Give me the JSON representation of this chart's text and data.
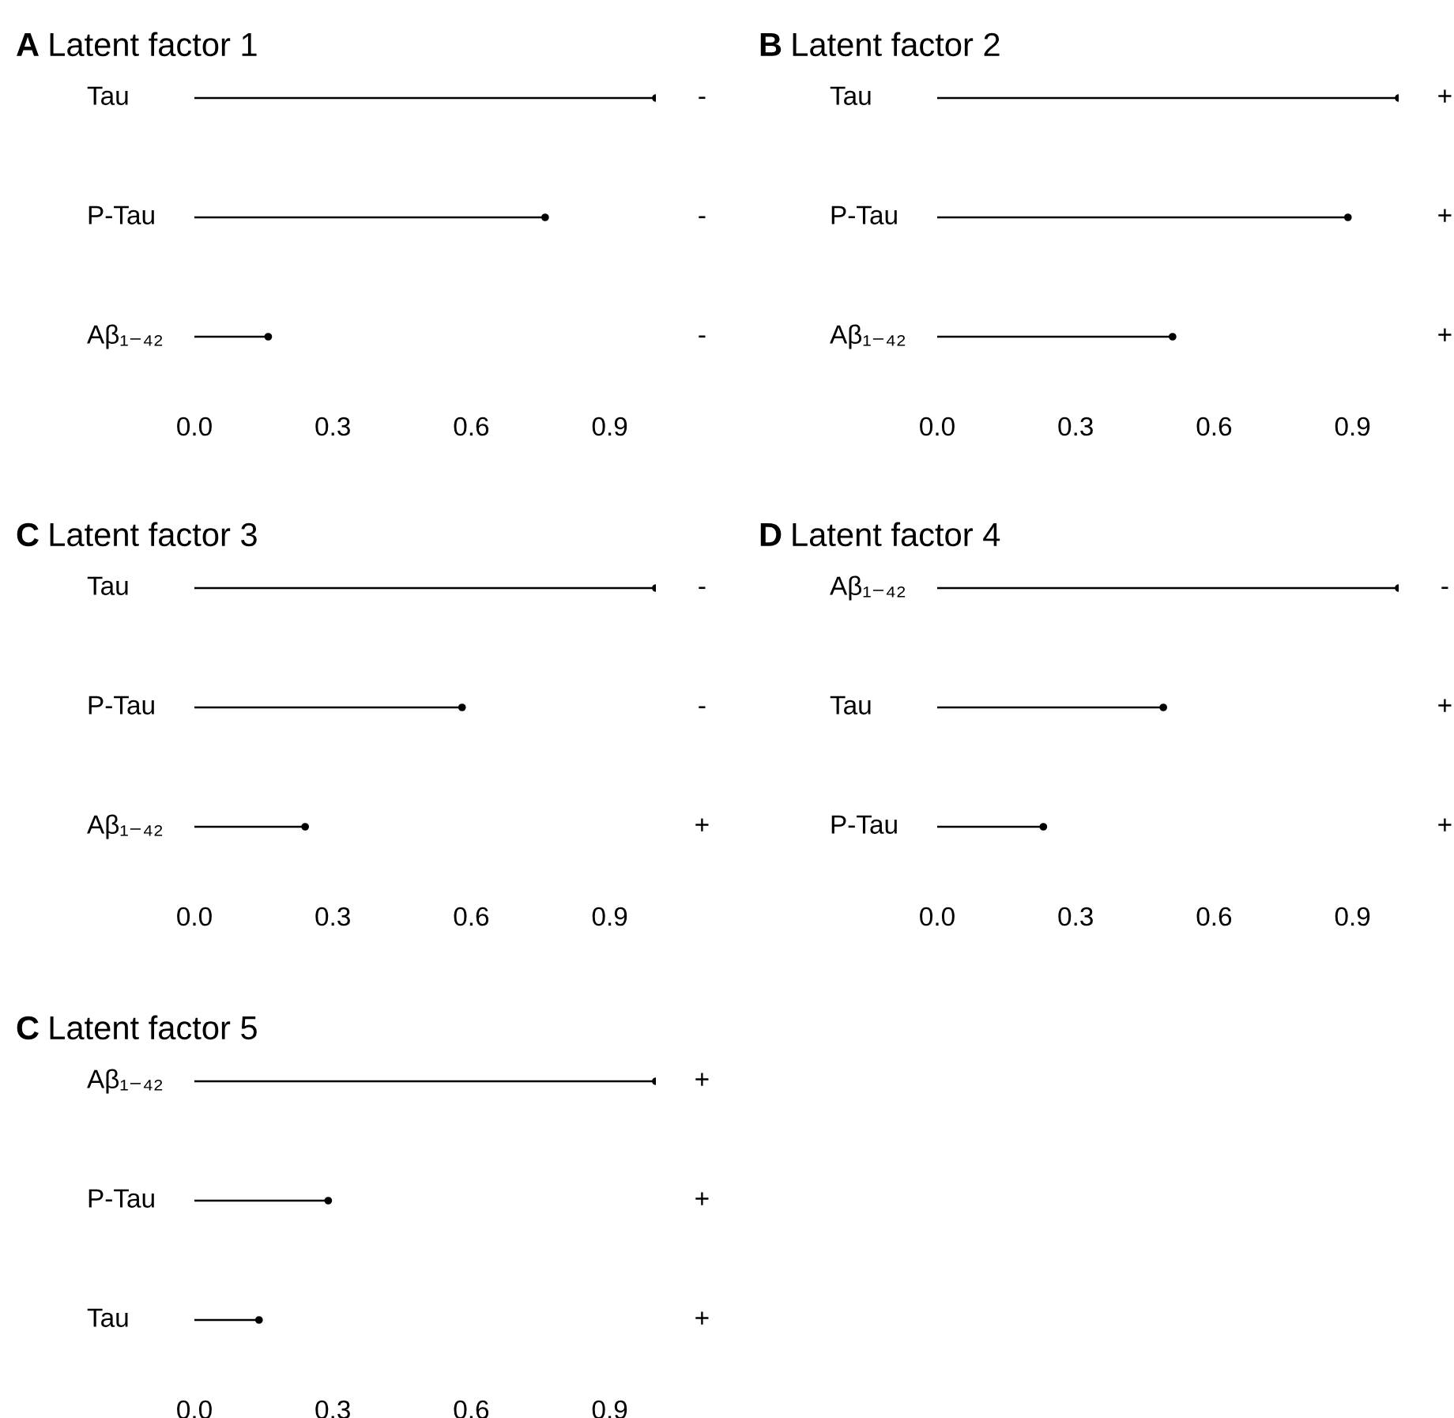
{
  "chart_data": [
    {
      "type": "lollipop",
      "orientation": "horizontal",
      "title": "A Latent factor 1",
      "categories": [
        "Tau",
        "P-Tau",
        "Aβ₁₋₄₂"
      ],
      "values": [
        1.0,
        0.76,
        0.16
      ],
      "value_labels": [
        "-",
        "-",
        "-"
      ],
      "color": "#000000",
      "marker": "circle",
      "xlim": [
        0,
        1.0
      ],
      "xticks": [
        {
          "value": 0,
          "label": "0.0"
        },
        {
          "value": 0.3,
          "label": "0.3"
        },
        {
          "value": 0.6,
          "label": "0.6"
        },
        {
          "value": 0.9,
          "label": "0.9"
        }
      ]
    },
    {
      "type": "lollipop",
      "orientation": "horizontal",
      "title": "B Latent factor 2",
      "categories": [
        "Tau",
        "P-Tau",
        "Aβ₁₋₄₂"
      ],
      "values": [
        1.0,
        0.89,
        0.51
      ],
      "value_labels": [
        "+",
        "+",
        "+"
      ],
      "color": "#000000",
      "marker": "circle",
      "xlim": [
        0,
        1.0
      ],
      "xticks": [
        {
          "value": 0,
          "label": "0.0"
        },
        {
          "value": 0.3,
          "label": "0.3"
        },
        {
          "value": 0.6,
          "label": "0.6"
        },
        {
          "value": 0.9,
          "label": "0.9"
        }
      ]
    },
    {
      "type": "lollipop",
      "orientation": "horizontal",
      "title": "C Latent factor 3",
      "categories": [
        "Tau",
        "P-Tau",
        "Aβ₁₋₄₂"
      ],
      "values": [
        1.0,
        0.58,
        0.24
      ],
      "value_labels": [
        "-",
        "-",
        "+"
      ],
      "color": "#000000",
      "marker": "circle",
      "xlim": [
        0,
        1.0
      ],
      "xticks": [
        {
          "value": 0,
          "label": "0.0"
        },
        {
          "value": 0.3,
          "label": "0.3"
        },
        {
          "value": 0.6,
          "label": "0.6"
        },
        {
          "value": 0.9,
          "label": "0.9"
        }
      ]
    },
    {
      "type": "lollipop",
      "orientation": "horizontal",
      "title": "D Latent factor 4",
      "categories": [
        "Aβ₁₋₄₂",
        "Tau",
        "P-Tau"
      ],
      "values": [
        1.0,
        0.49,
        0.23
      ],
      "value_labels": [
        "-",
        "+",
        "+"
      ],
      "color": "#000000",
      "marker": "circle",
      "xlim": [
        0,
        1.0
      ],
      "xticks": [
        {
          "value": 0,
          "label": "0.0"
        },
        {
          "value": 0.3,
          "label": "0.3"
        },
        {
          "value": 0.6,
          "label": "0.6"
        },
        {
          "value": 0.9,
          "label": "0.9"
        }
      ]
    },
    {
      "type": "lollipop",
      "orientation": "horizontal",
      "title": "C Latent factor 5",
      "categories": [
        "Aβ₁₋₄₂",
        "P-Tau",
        "Tau"
      ],
      "values": [
        1.0,
        0.29,
        0.14
      ],
      "value_labels": [
        "+",
        "+",
        "+"
      ],
      "color": "#000000",
      "marker": "circle",
      "xlim": [
        0,
        1.0
      ],
      "xticks": [
        {
          "value": 0,
          "label": "0.0"
        },
        {
          "value": 0.3,
          "label": "0.3"
        },
        {
          "value": 0.6,
          "label": "0.6"
        },
        {
          "value": 0.9,
          "label": "0.9"
        }
      ]
    }
  ]
}
